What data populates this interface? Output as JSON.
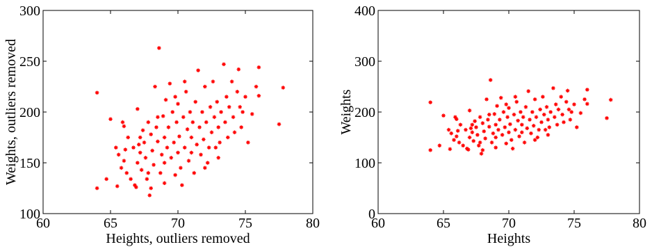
{
  "chart_data": [
    {
      "type": "scatter",
      "x_label": "Heights, outliers removed",
      "y_label": "Weights, outliers removed",
      "color": "#ff0000",
      "xlim": [
        60,
        80
      ],
      "ylim": [
        100,
        300
      ],
      "xticks": [
        60,
        65,
        70,
        75,
        80
      ],
      "yticks": [
        100,
        150,
        200,
        250,
        300
      ],
      "x": [
        64.0,
        64.0,
        64.7,
        65.0,
        65.4,
        65.6,
        65.5,
        65.8,
        65.9,
        66.0,
        66.0,
        66.1,
        66.3,
        66.5,
        66.8,
        66.9,
        67.0,
        67.0,
        67.1,
        67.2,
        67.3,
        67.4,
        67.5,
        67.6,
        67.7,
        67.8,
        67.9,
        68.0,
        68.0,
        68.1,
        68.2,
        68.3,
        68.4,
        68.5,
        68.6,
        68.7,
        68.8,
        68.9,
        69.0,
        69.0,
        69.1,
        69.2,
        69.3,
        69.4,
        69.5,
        69.6,
        69.7,
        69.8,
        69.9,
        70.0,
        70.0,
        70.1,
        70.2,
        70.4,
        70.5,
        70.6,
        70.7,
        70.8,
        70.9,
        71.0,
        71.1,
        71.2,
        71.3,
        71.4,
        71.5,
        71.6,
        71.7,
        71.8,
        71.9,
        72.0,
        72.1,
        72.2,
        72.3,
        72.4,
        72.5,
        72.6,
        72.7,
        72.8,
        72.9,
        73.0,
        73.1,
        73.2,
        73.4,
        73.5,
        73.6,
        73.7,
        73.8,
        74.0,
        74.1,
        74.2,
        74.4,
        74.5,
        74.6,
        74.7,
        74.8,
        75.0,
        75.2,
        75.5,
        75.8,
        76.0,
        76.0,
        77.5,
        77.8,
        66.2,
        67.2,
        68.5,
        69.8,
        70.3,
        71.0,
        72.0,
        70.5,
        73.0,
        69.0,
        67.8,
        66.7
      ],
      "y": [
        219,
        125,
        134,
        193,
        165,
        158,
        127,
        145,
        190,
        186,
        152,
        163,
        175,
        134,
        128,
        126,
        150,
        203,
        168,
        160,
        143,
        182,
        170,
        155,
        134,
        190,
        118,
        178,
        125,
        162,
        148,
        225,
        185,
        171,
        263,
        140,
        158,
        196,
        175,
        150,
        212,
        165,
        185,
        228,
        155,
        200,
        170,
        138,
        190,
        160,
        208,
        176,
        145,
        195,
        165,
        220,
        183,
        152,
        200,
        175,
        190,
        140,
        210,
        168,
        241,
        185,
        158,
        200,
        173,
        225,
        190,
        150,
        165,
        205,
        180,
        230,
        195,
        165,
        210,
        185,
        170,
        200,
        247,
        190,
        215,
        175,
        205,
        230,
        195,
        180,
        220,
        242,
        205,
        185,
        200,
        215,
        170,
        198,
        225,
        244,
        216,
        188,
        224,
        140,
        175,
        195,
        215,
        128,
        160,
        145,
        230,
        155,
        130,
        140,
        165
      ]
    },
    {
      "type": "scatter",
      "x_label": "Heights",
      "y_label": "Weights",
      "color": "#ff0000",
      "xlim": [
        60,
        80
      ],
      "ylim": [
        0,
        400
      ],
      "xticks": [
        60,
        65,
        70,
        75,
        80
      ],
      "yticks": [
        0,
        100,
        200,
        300,
        400
      ],
      "x": [
        64.0,
        64.0,
        64.7,
        65.0,
        65.4,
        65.6,
        65.5,
        65.8,
        65.9,
        66.0,
        66.0,
        66.1,
        66.3,
        66.5,
        66.8,
        66.9,
        67.0,
        67.0,
        67.1,
        67.2,
        67.3,
        67.4,
        67.5,
        67.6,
        67.7,
        67.8,
        67.9,
        68.0,
        68.0,
        68.1,
        68.2,
        68.3,
        68.4,
        68.5,
        68.6,
        68.7,
        68.8,
        68.9,
        69.0,
        69.0,
        69.1,
        69.2,
        69.3,
        69.4,
        69.5,
        69.6,
        69.7,
        69.8,
        69.9,
        70.0,
        70.0,
        70.1,
        70.2,
        70.4,
        70.5,
        70.6,
        70.7,
        70.8,
        70.9,
        71.0,
        71.1,
        71.2,
        71.3,
        71.4,
        71.5,
        71.6,
        71.7,
        71.8,
        71.9,
        72.0,
        72.1,
        72.2,
        72.3,
        72.4,
        72.5,
        72.6,
        72.7,
        72.8,
        72.9,
        73.0,
        73.1,
        73.2,
        73.4,
        73.5,
        73.6,
        73.7,
        73.8,
        74.0,
        74.1,
        74.2,
        74.4,
        74.5,
        74.6,
        74.7,
        74.8,
        75.0,
        75.2,
        75.5,
        75.8,
        76.0,
        76.0,
        77.5,
        77.8,
        66.2,
        67.2,
        68.5,
        69.8,
        70.3,
        71.0,
        72.0,
        70.5,
        73.0,
        69.0,
        67.8,
        66.7
      ],
      "y": [
        219,
        125,
        134,
        193,
        165,
        158,
        127,
        145,
        190,
        186,
        152,
        163,
        175,
        134,
        128,
        126,
        150,
        203,
        168,
        160,
        143,
        182,
        170,
        155,
        134,
        190,
        118,
        178,
        125,
        162,
        148,
        225,
        185,
        171,
        263,
        140,
        158,
        196,
        175,
        150,
        212,
        165,
        185,
        228,
        155,
        200,
        170,
        138,
        190,
        160,
        208,
        176,
        145,
        195,
        165,
        220,
        183,
        152,
        200,
        175,
        190,
        140,
        210,
        168,
        241,
        185,
        158,
        200,
        173,
        225,
        190,
        150,
        165,
        205,
        180,
        230,
        195,
        165,
        210,
        185,
        170,
        200,
        247,
        190,
        215,
        175,
        205,
        230,
        195,
        180,
        220,
        242,
        205,
        185,
        200,
        215,
        170,
        198,
        225,
        244,
        216,
        188,
        224,
        140,
        175,
        195,
        215,
        128,
        160,
        145,
        230,
        155,
        130,
        140,
        165
      ]
    }
  ]
}
